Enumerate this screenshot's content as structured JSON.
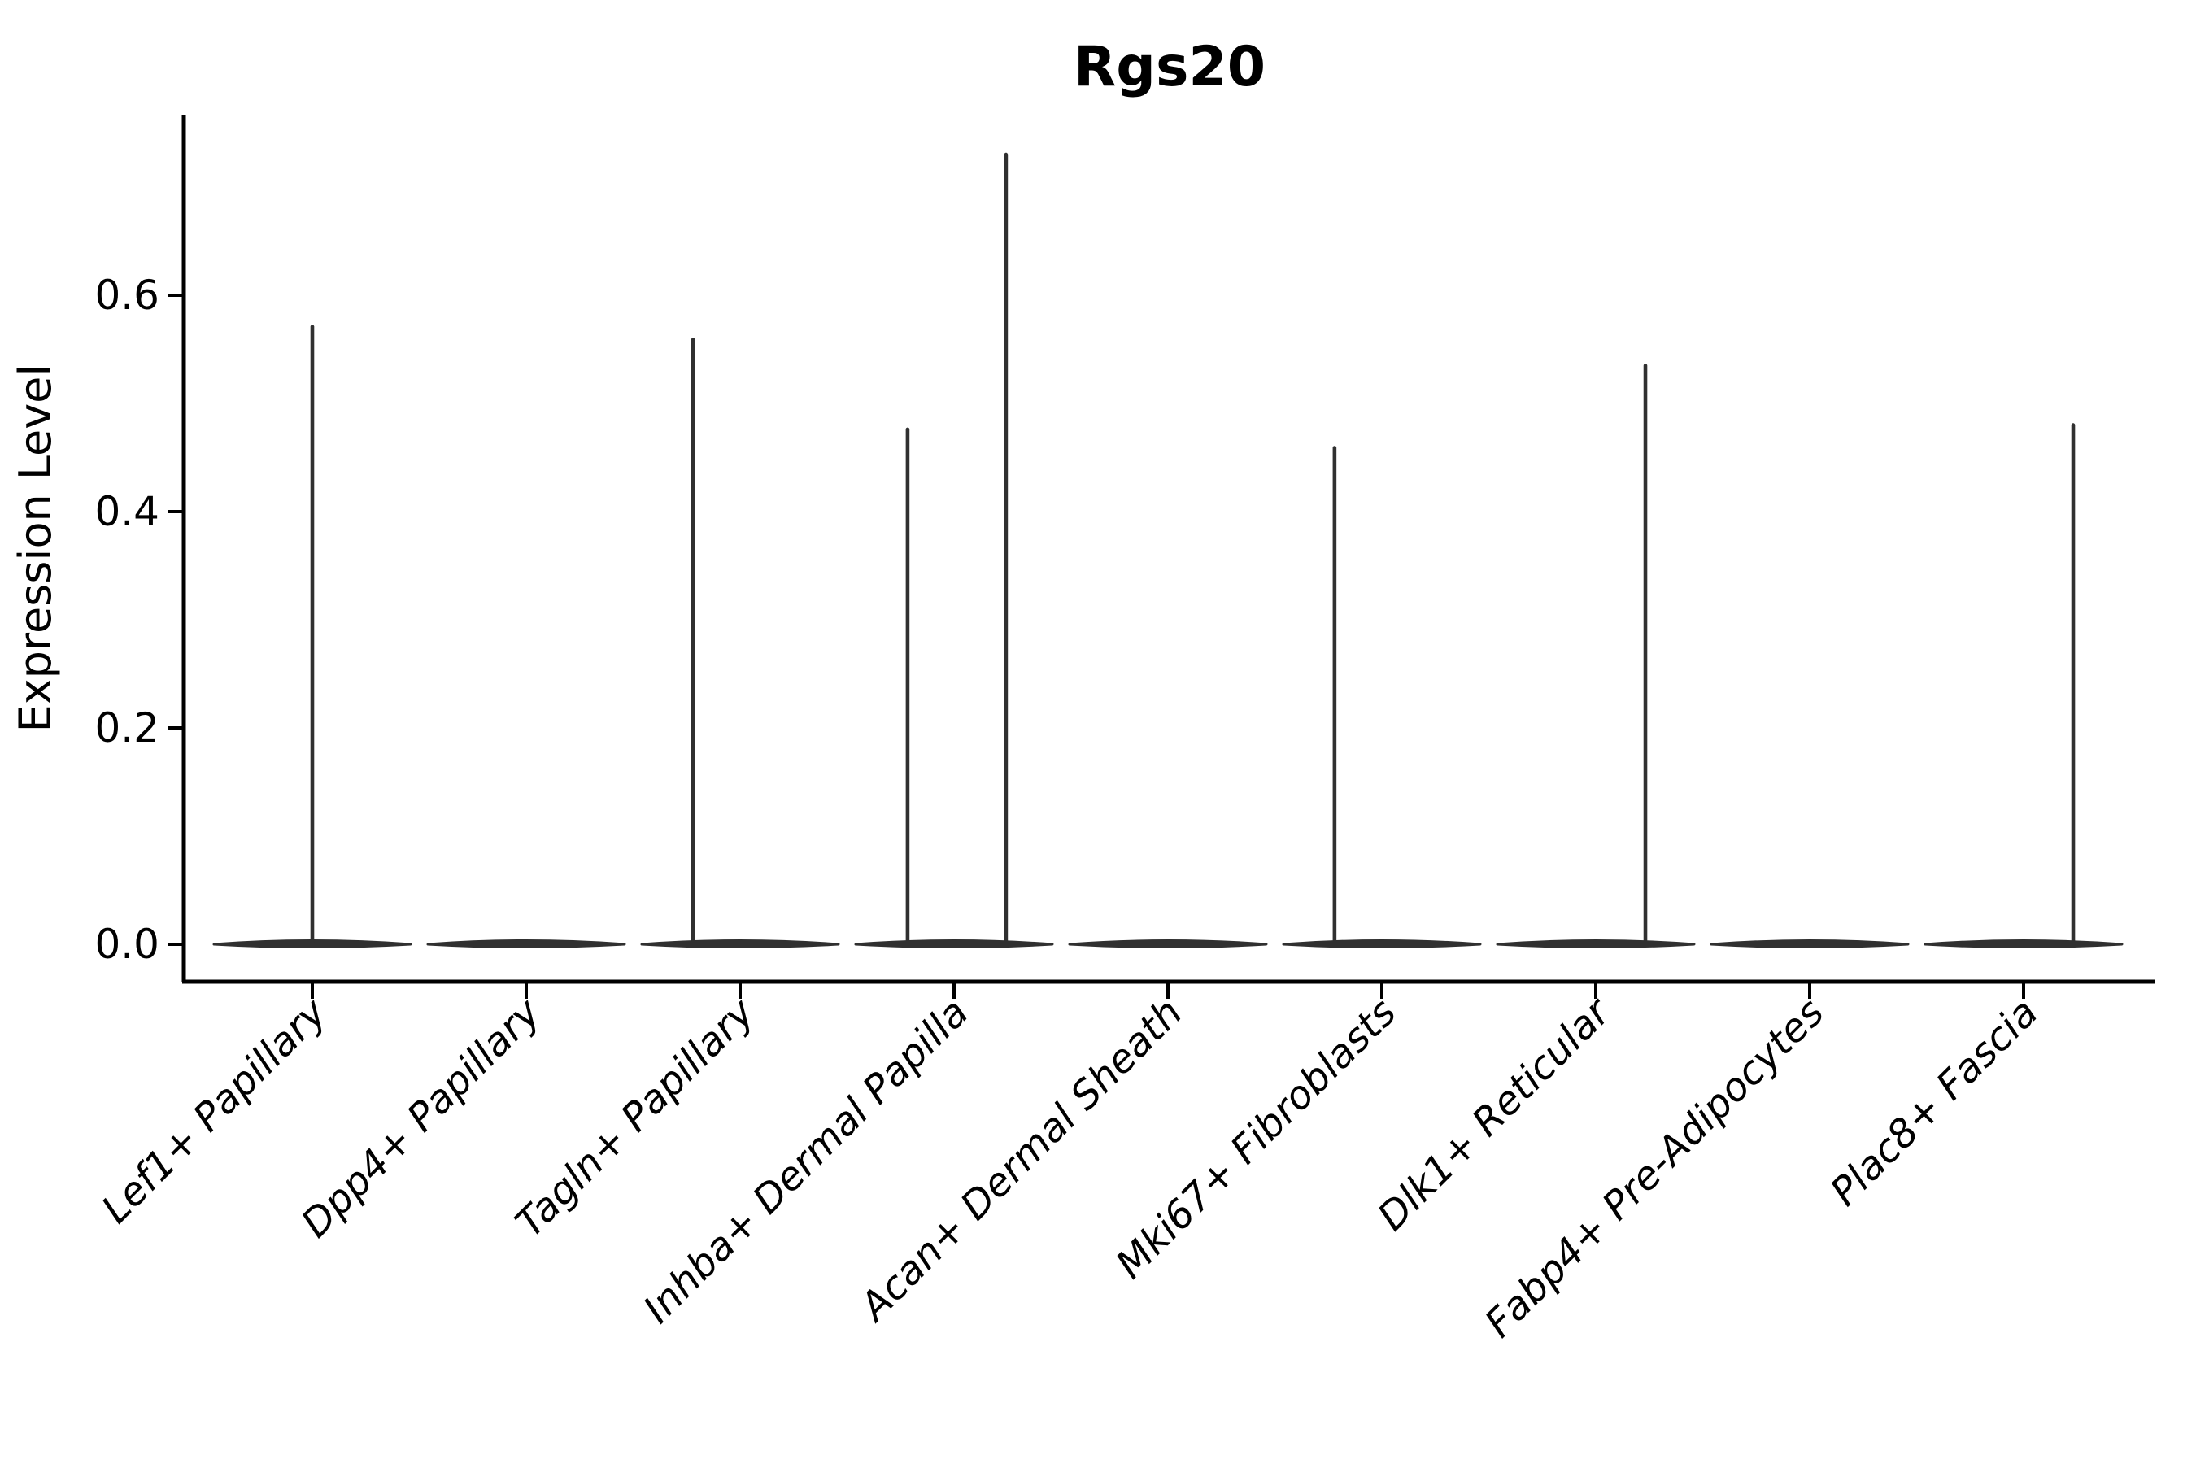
{
  "title": "Rgs20",
  "y_axis": {
    "label": "Expression Level",
    "tick_labels": [
      "0.0",
      "0.2",
      "0.4",
      "0.6"
    ]
  },
  "colors": {
    "background": "#ffffff",
    "axis": "#000000",
    "text": "#000000",
    "violin_stroke": "#303030"
  },
  "chart_data": {
    "type": "violin",
    "title": "Rgs20",
    "xlabel": "",
    "ylabel": "Expression Level",
    "grid": false,
    "legend": null,
    "yticks": [
      0.0,
      0.2,
      0.4,
      0.6
    ],
    "ylim": [
      -0.035,
      0.766
    ],
    "categories": [
      "Lef1+ Papillary",
      "Dpp4+ Papillary",
      "Tagln+ Papillary",
      "Inhba+ Dermal Papilla",
      "Acan+ Dermal Sheath",
      "Mki67+ Fibroblasts",
      "Dlk1+ Reticular",
      "Fabp4+ Pre-Adipocytes",
      "Plac8+ Fascia"
    ],
    "baseline_value": 0.0,
    "base_halfwidth_frac": 0.46,
    "violins": [
      {
        "category": "Lef1+ Papillary",
        "bulk_at_zero": true,
        "spikes": [
          {
            "offset_frac": 0.0,
            "value": 0.571
          }
        ]
      },
      {
        "category": "Dpp4+ Papillary",
        "bulk_at_zero": true,
        "spikes": []
      },
      {
        "category": "Tagln+ Papillary",
        "bulk_at_zero": true,
        "spikes": [
          {
            "offset_frac": -0.22,
            "value": 0.559
          }
        ]
      },
      {
        "category": "Inhba+ Dermal Papilla",
        "bulk_at_zero": true,
        "spikes": [
          {
            "offset_frac": -0.217,
            "value": 0.476
          },
          {
            "offset_frac": 0.243,
            "value": 0.73
          }
        ]
      },
      {
        "category": "Acan+ Dermal Sheath",
        "bulk_at_zero": true,
        "spikes": []
      },
      {
        "category": "Mki67+ Fibroblasts",
        "bulk_at_zero": true,
        "spikes": [
          {
            "offset_frac": -0.221,
            "value": 0.459
          }
        ]
      },
      {
        "category": "Dlk1+ Reticular",
        "bulk_at_zero": true,
        "spikes": [
          {
            "offset_frac": 0.232,
            "value": 0.535
          }
        ]
      },
      {
        "category": "Fabp4+ Pre-Adipocytes",
        "bulk_at_zero": true,
        "spikes": []
      },
      {
        "category": "Plac8+ Fascia",
        "bulk_at_zero": true,
        "spikes": [
          {
            "offset_frac": 0.232,
            "value": 0.48
          }
        ]
      }
    ]
  }
}
